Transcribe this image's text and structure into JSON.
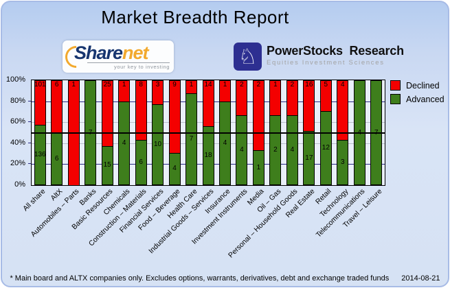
{
  "title": "Market Breadth Report",
  "logos": {
    "sharenet": {
      "part1": "Share",
      "part2": "net",
      "tagline": "your key to investing"
    },
    "powerstocks": {
      "name": "PowerStocks  Research",
      "tagline": "Equities Investment Sciences",
      "knight_icon": "♘"
    }
  },
  "legend": [
    {
      "label": "Declined",
      "color": "#f40000"
    },
    {
      "label": "Advanced",
      "color": "#3e7e1c"
    }
  ],
  "chart_data": {
    "type": "bar",
    "stacked": true,
    "normalized": "percent",
    "title": "Market Breadth Report",
    "categories": [
      "All share",
      "AltX",
      "Automobiles – Parts",
      "Banks",
      "Basic Resources",
      "Chemicals",
      "Construction – Materials",
      "Financial Services",
      "Food – Beverage",
      "Health Care",
      "Industrial Goods – Services",
      "Insurance",
      "Investment Instruments",
      "Media",
      "Oil – Gas",
      "Personal – Household Goods",
      "Real Estate",
      "Retail",
      "Technology",
      "Telecommunications",
      "Travel – Leisure"
    ],
    "series": [
      {
        "name": "Declined",
        "color": "#f40000",
        "values": [
          101,
          6,
          1,
          0,
          25,
          1,
          8,
          3,
          9,
          1,
          14,
          1,
          2,
          2,
          1,
          2,
          16,
          5,
          4,
          0,
          0
        ]
      },
      {
        "name": "Advanced",
        "color": "#3e7e1c",
        "values": [
          136,
          6,
          0,
          7,
          15,
          4,
          6,
          10,
          4,
          7,
          18,
          4,
          4,
          1,
          2,
          4,
          17,
          12,
          3,
          4,
          7
        ]
      }
    ],
    "y_ticks": [
      "100%",
      "80%",
      "60%",
      "40%",
      "20%",
      "0%"
    ],
    "ylim": [
      0,
      100
    ],
    "reference_line_pct": 50,
    "legend_position": "top-right",
    "grid": "horizontal"
  },
  "footer": {
    "note": "* Main board and ALTX companies only. Excludes options, warrants, derivatives, debt and exchange traded funds",
    "date": "2014-08-21"
  }
}
